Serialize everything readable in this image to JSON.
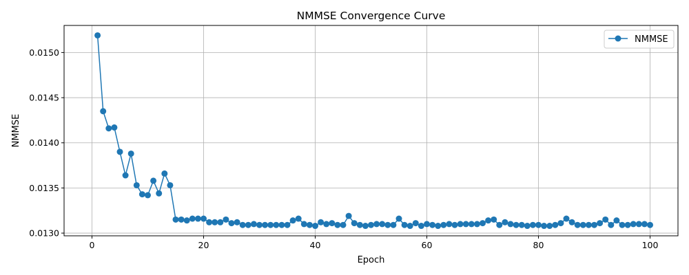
{
  "chart_data": {
    "type": "line",
    "title": "NMMSE Convergence Curve",
    "xlabel": "Epoch",
    "ylabel": "NMMSE",
    "xlim": [
      -5,
      105
    ],
    "ylim": [
      0.01297,
      0.0153
    ],
    "xticks": [
      0,
      20,
      40,
      60,
      80,
      100
    ],
    "xtick_labels": [
      "0",
      "20",
      "40",
      "60",
      "80",
      "100"
    ],
    "yticks": [
      0.013,
      0.0135,
      0.014,
      0.0145,
      0.015
    ],
    "ytick_labels": [
      "0.0130",
      "0.0135",
      "0.0140",
      "0.0145",
      "0.0150"
    ],
    "grid": true,
    "legend_position": "top-right",
    "color": "#1f77b4",
    "series": [
      {
        "name": "NMMSE",
        "x": [
          1,
          2,
          3,
          4,
          5,
          6,
          7,
          8,
          9,
          10,
          11,
          12,
          13,
          14,
          15,
          16,
          17,
          18,
          19,
          20,
          21,
          22,
          23,
          24,
          25,
          26,
          27,
          28,
          29,
          30,
          31,
          32,
          33,
          34,
          35,
          36,
          37,
          38,
          39,
          40,
          41,
          42,
          43,
          44,
          45,
          46,
          47,
          48,
          49,
          50,
          51,
          52,
          53,
          54,
          55,
          56,
          57,
          58,
          59,
          60,
          61,
          62,
          63,
          64,
          65,
          66,
          67,
          68,
          69,
          70,
          71,
          72,
          73,
          74,
          75,
          76,
          77,
          78,
          79,
          80,
          81,
          82,
          83,
          84,
          85,
          86,
          87,
          88,
          89,
          90,
          91,
          92,
          93,
          94,
          95,
          96,
          97,
          98,
          99,
          100
        ],
        "values": [
          0.01519,
          0.01435,
          0.01416,
          0.01417,
          0.0139,
          0.01364,
          0.01388,
          0.01353,
          0.01343,
          0.01342,
          0.01358,
          0.01344,
          0.01366,
          0.01353,
          0.01315,
          0.01315,
          0.01314,
          0.01316,
          0.01316,
          0.01316,
          0.01312,
          0.01312,
          0.01312,
          0.01315,
          0.01311,
          0.01312,
          0.01309,
          0.01309,
          0.0131,
          0.01309,
          0.01309,
          0.01309,
          0.01309,
          0.01309,
          0.01309,
          0.01314,
          0.01316,
          0.0131,
          0.01309,
          0.01308,
          0.01312,
          0.0131,
          0.01311,
          0.01309,
          0.01309,
          0.01319,
          0.01311,
          0.01309,
          0.01308,
          0.01309,
          0.0131,
          0.0131,
          0.01309,
          0.01309,
          0.01316,
          0.01309,
          0.01308,
          0.01311,
          0.01308,
          0.0131,
          0.01309,
          0.01308,
          0.01309,
          0.0131,
          0.01309,
          0.0131,
          0.0131,
          0.0131,
          0.0131,
          0.01311,
          0.01314,
          0.01315,
          0.01309,
          0.01312,
          0.0131,
          0.01309,
          0.01309,
          0.01308,
          0.01309,
          0.01309,
          0.01308,
          0.01308,
          0.01309,
          0.01311,
          0.01316,
          0.01312,
          0.01309,
          0.01309,
          0.01309,
          0.01309,
          0.01311,
          0.01315,
          0.01309,
          0.01314,
          0.01309,
          0.01309,
          0.0131,
          0.0131,
          0.0131,
          0.01309
        ]
      }
    ]
  }
}
